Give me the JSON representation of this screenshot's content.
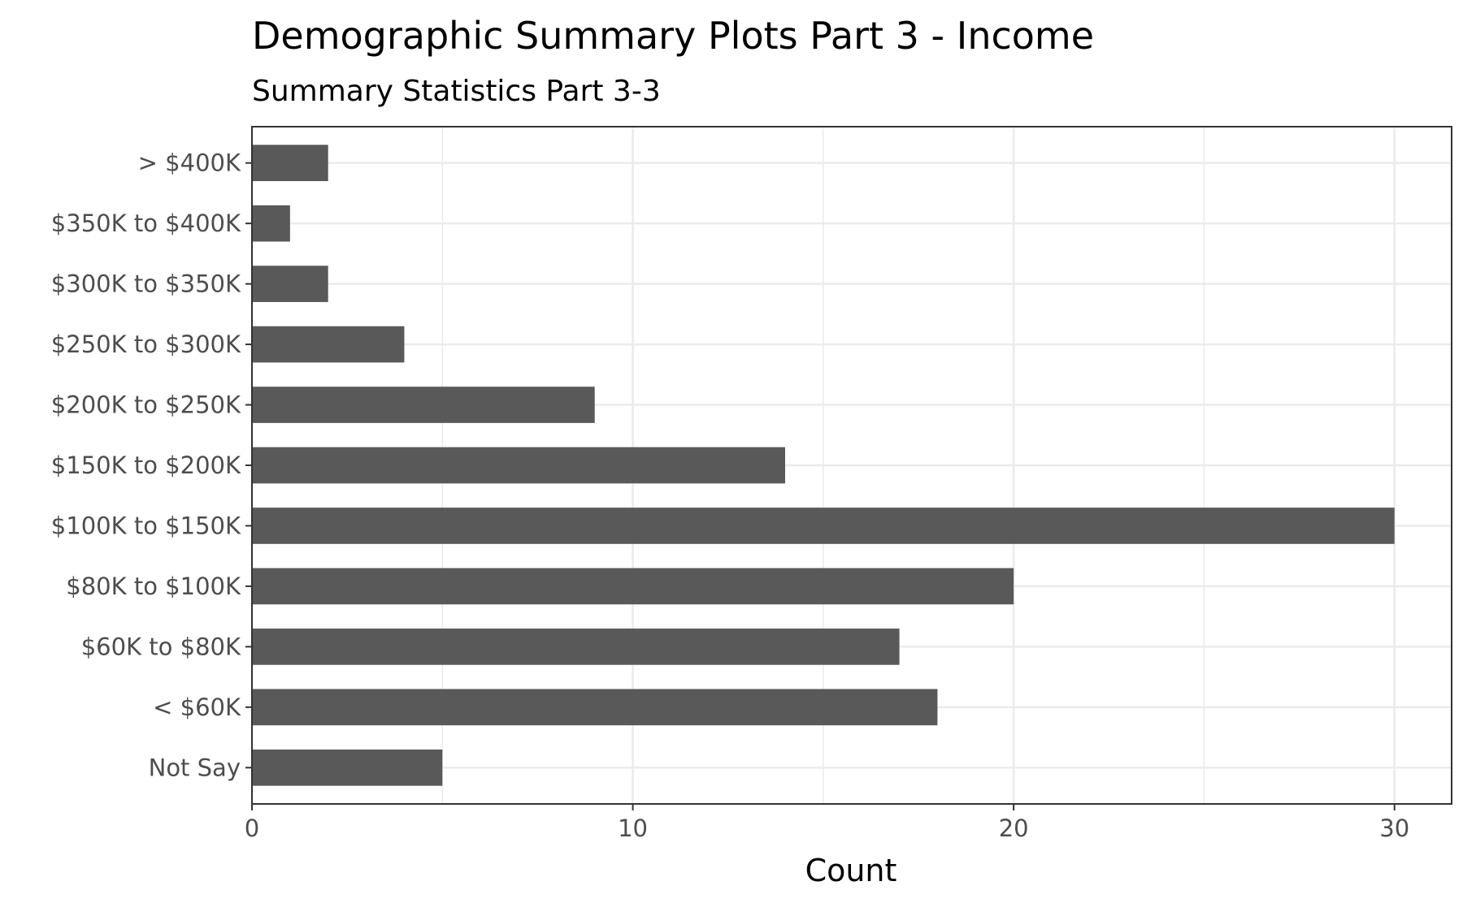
{
  "chart_data": {
    "type": "bar",
    "orientation": "horizontal",
    "title": "Demographic Summary Plots Part 3 - Income",
    "subtitle": "Summary Statistics Part 3-3",
    "xlabel": "Count",
    "ylabel": "",
    "categories": [
      "> $400K",
      "$350K to $400K",
      "$300K to $350K",
      "$250K to $300K",
      "$200K to $250K",
      "$150K to $200K",
      "$100K to $150K",
      "$80K to $100K",
      "$60K to $80K",
      "< $60K",
      "Not Say"
    ],
    "values": [
      2,
      1,
      2,
      4,
      9,
      14,
      30,
      20,
      17,
      18,
      5
    ],
    "xlim": [
      0,
      31.5
    ],
    "x_ticks": [
      0,
      10,
      20,
      30
    ],
    "x_tick_labels": [
      "0",
      "10",
      "20",
      "30"
    ],
    "grid": true,
    "bar_color": "#595959",
    "grid_color": "#ebebeb",
    "panel_border_color": "#333333"
  }
}
